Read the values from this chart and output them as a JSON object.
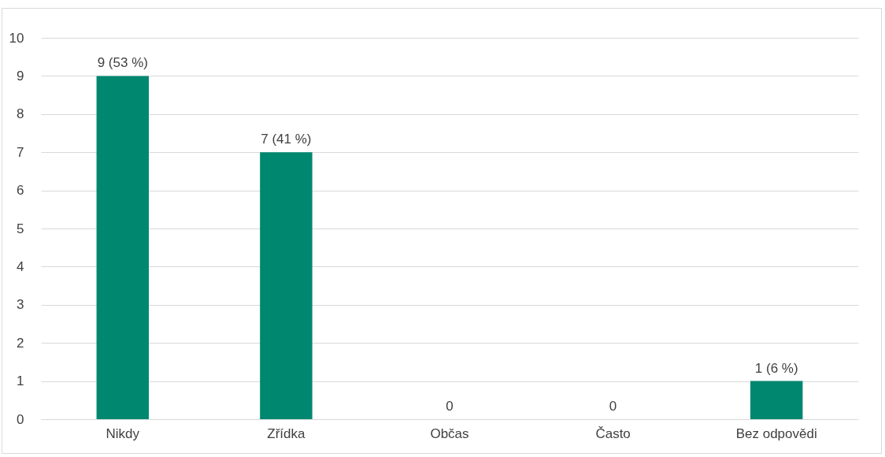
{
  "chart_data": {
    "type": "bar",
    "categories": [
      "Nikdy",
      "Zřídka",
      "Občas",
      "Často",
      "Bez odpovědi"
    ],
    "values": [
      9,
      7,
      0,
      0,
      1
    ],
    "value_labels": [
      "9 (53 %)",
      "7 (41 %)",
      "0",
      "0",
      "1 (6 %)"
    ],
    "color": "#00876f",
    "ylim": [
      0,
      10
    ],
    "yticks": [
      0,
      1,
      2,
      3,
      4,
      5,
      6,
      7,
      8,
      9,
      10
    ],
    "grid": "y"
  }
}
